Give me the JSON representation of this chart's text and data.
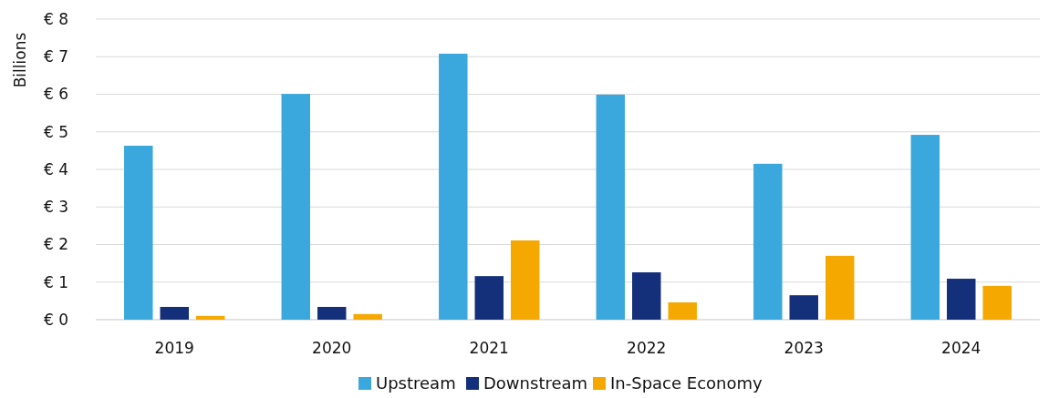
{
  "chart_data": {
    "type": "bar",
    "ylabel": "Billions",
    "categories": [
      "2019",
      "2020",
      "2021",
      "2022",
      "2023",
      "2024"
    ],
    "series": [
      {
        "name": "Upstream",
        "color": "#3aa8dc",
        "values": [
          4.63,
          6.01,
          7.08,
          5.99,
          4.15,
          4.92
        ]
      },
      {
        "name": "Downstream",
        "color": "#14307a",
        "values": [
          0.34,
          0.34,
          1.16,
          1.26,
          0.65,
          1.09
        ]
      },
      {
        "name": "In-Space Economy",
        "color": "#f5a800",
        "values": [
          0.1,
          0.15,
          2.11,
          0.46,
          1.7,
          0.9
        ]
      }
    ],
    "ylim": [
      0,
      8
    ],
    "yticks": [
      {
        "value": 0,
        "label": "€ 0"
      },
      {
        "value": 1,
        "label": "€ 1"
      },
      {
        "value": 2,
        "label": "€ 2"
      },
      {
        "value": 3,
        "label": "€ 3"
      },
      {
        "value": 4,
        "label": "€ 4"
      },
      {
        "value": 5,
        "label": "€ 5"
      },
      {
        "value": 6,
        "label": "€ 6"
      },
      {
        "value": 7,
        "label": "€ 7"
      },
      {
        "value": 8,
        "label": "€ 8"
      }
    ],
    "grid": "y",
    "legend": "bottom"
  }
}
